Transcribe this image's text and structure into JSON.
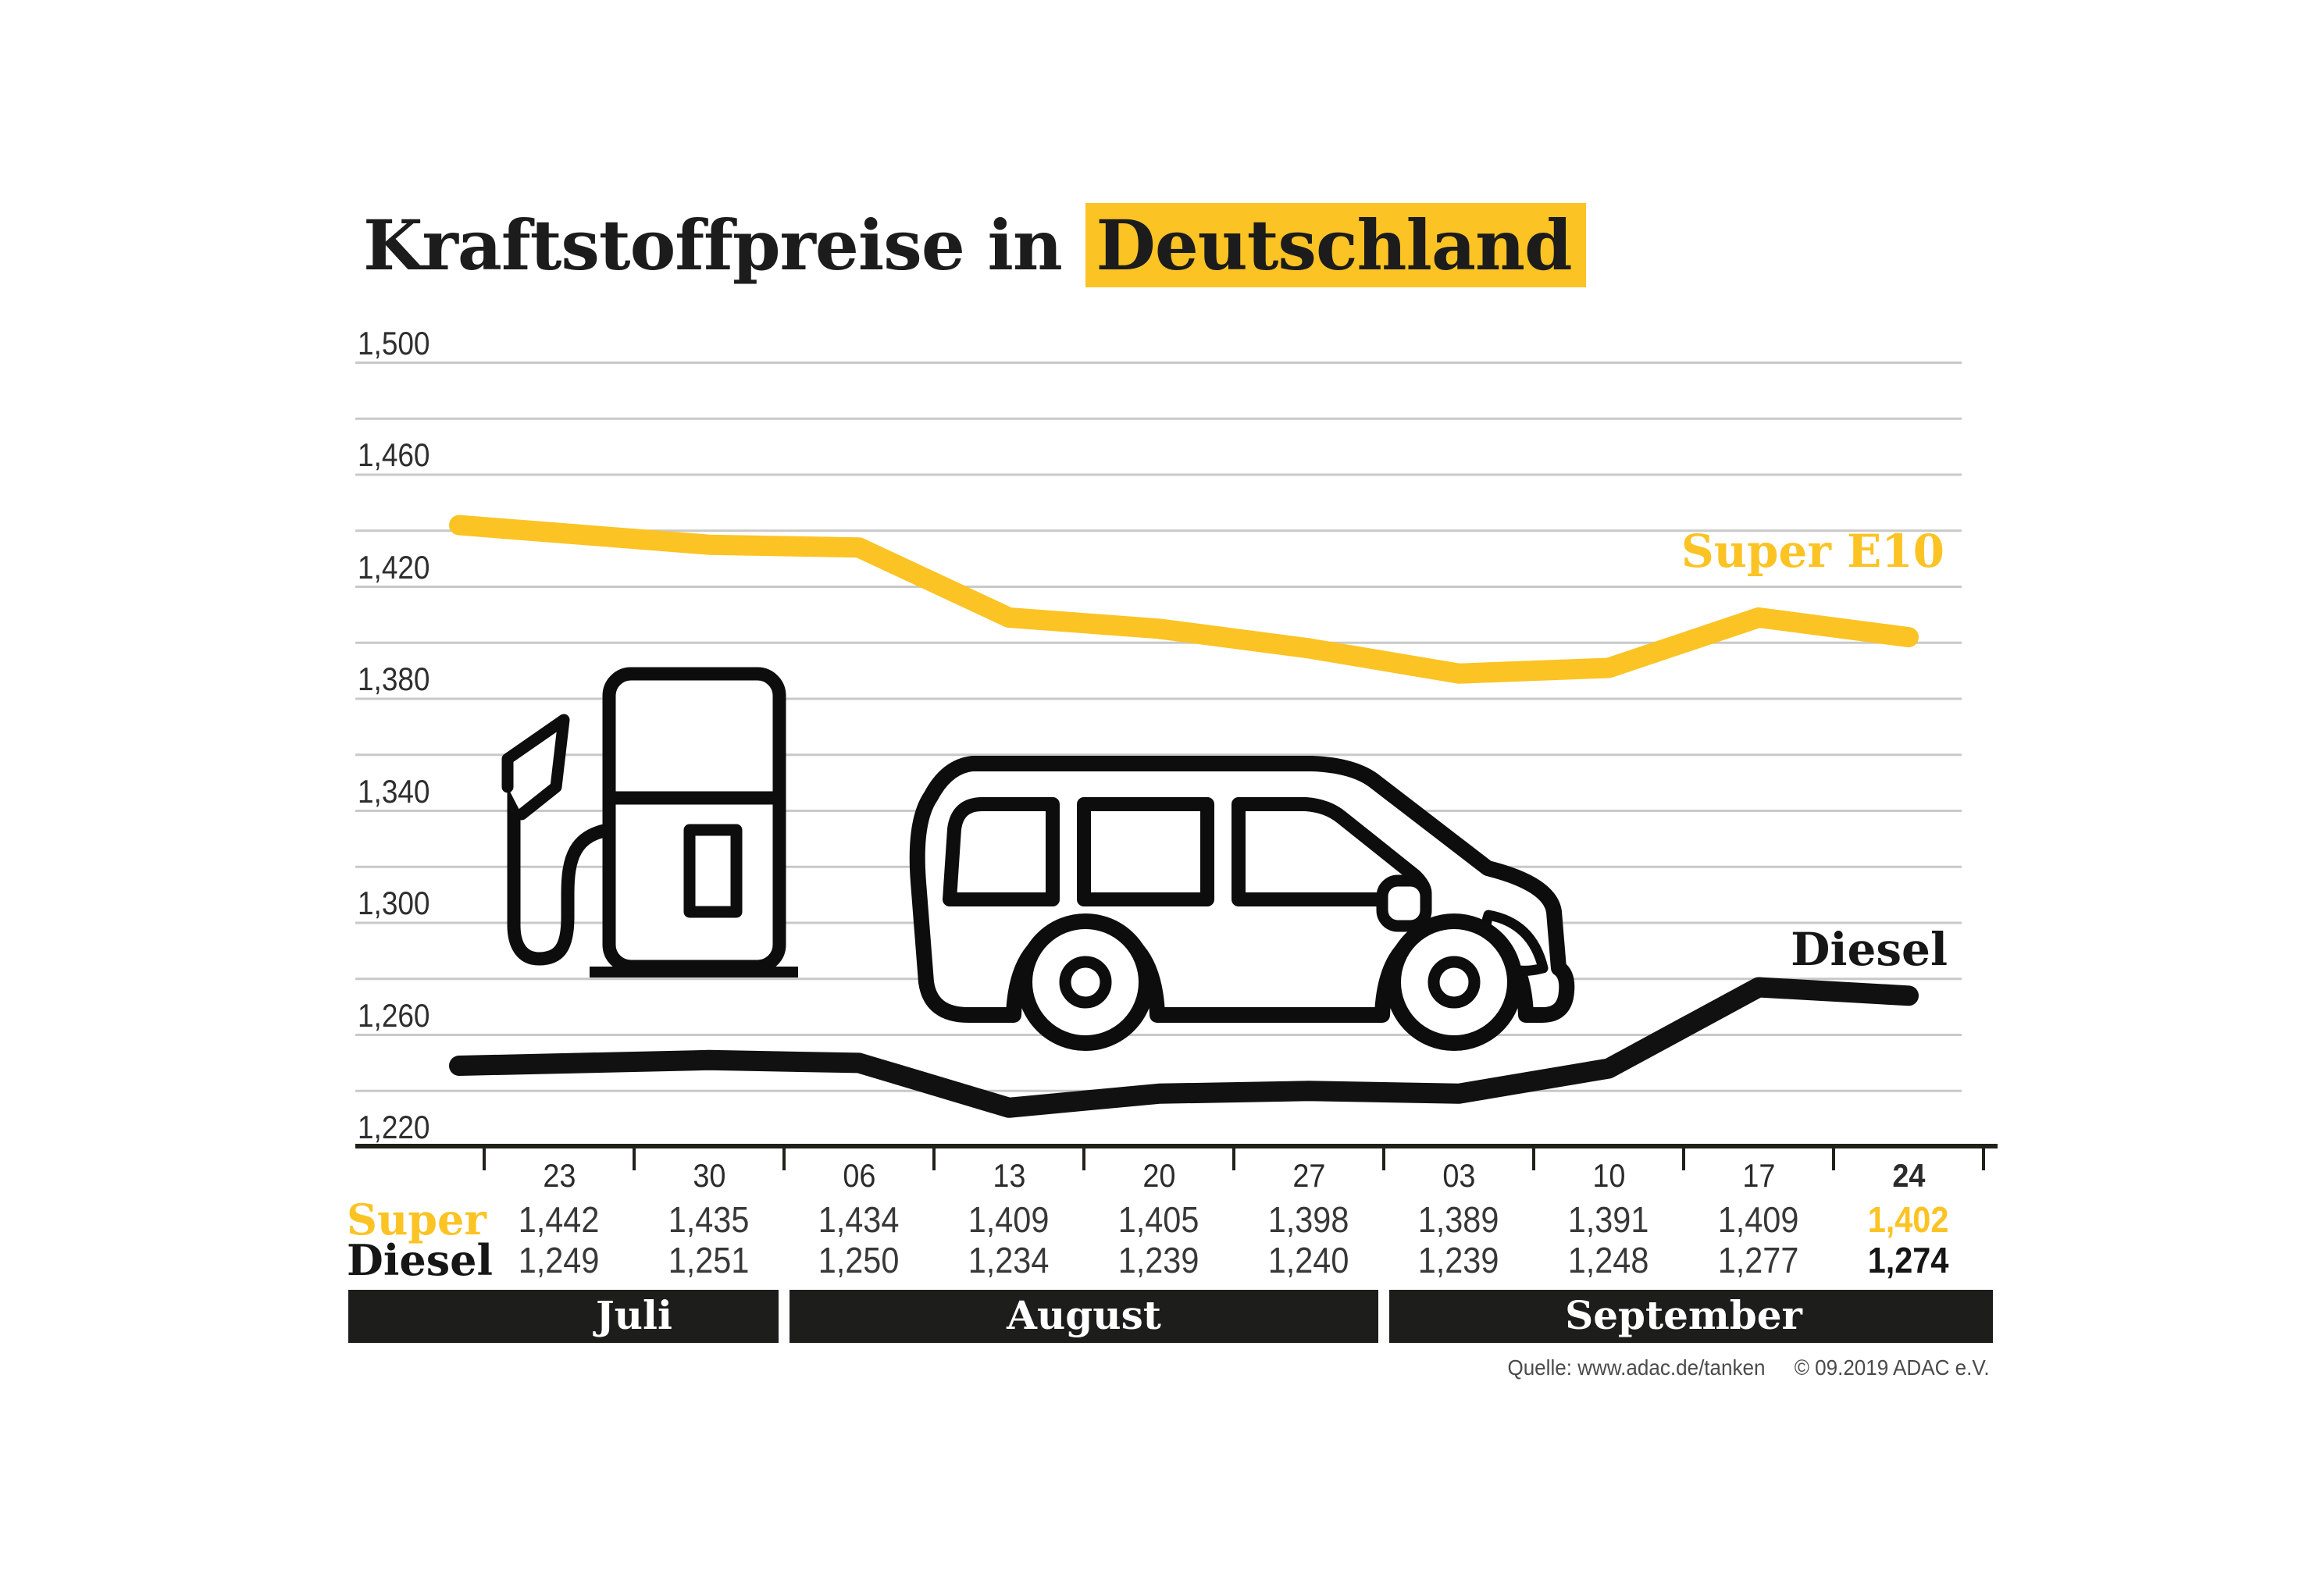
{
  "title": {
    "prefix": "Kraftstoffpreise in",
    "highlight": "Deutschland"
  },
  "colors": {
    "accent_yellow": "#FBC324",
    "diesel_black": "#111111",
    "grid": "#c9c9c9",
    "axis": "#21211a",
    "band_bg": "#1d1d1c",
    "band_text": "#ffffff",
    "text_dark": "#1c1c1c"
  },
  "chart_data": {
    "type": "line",
    "title": "Kraftstoffpreise in Deutschland",
    "ylim": [
      1220,
      1500
    ],
    "grid_step": 20,
    "ytick_labels": [
      "1,500",
      "1,460",
      "1,420",
      "1,380",
      "1,340",
      "1,300",
      "1,260",
      "1,220"
    ],
    "x_dates": [
      "23",
      "30",
      "06",
      "13",
      "20",
      "27",
      "03",
      "10",
      "17",
      "24"
    ],
    "months": [
      {
        "label": "Juli",
        "start_col": 0,
        "end_col": 2
      },
      {
        "label": "August",
        "start_col": 2,
        "end_col": 6
      },
      {
        "label": "September",
        "start_col": 6,
        "end_col": 10
      }
    ],
    "series": [
      {
        "name": "Super E10",
        "color": "#FBC324",
        "values": [
          1442,
          1435,
          1434,
          1409,
          1405,
          1398,
          1389,
          1391,
          1409,
          1402
        ]
      },
      {
        "name": "Diesel",
        "color": "#111111",
        "values": [
          1249,
          1251,
          1250,
          1234,
          1239,
          1240,
          1239,
          1248,
          1277,
          1274
        ]
      }
    ],
    "legend_position": "right-of-lines"
  },
  "table": {
    "date_row": [
      "23",
      "30",
      "06",
      "13",
      "20",
      "27",
      "03",
      "10",
      "17",
      "24"
    ],
    "rows": [
      {
        "label": "Super",
        "color": "#FBC324",
        "values": [
          "1,442",
          "1,435",
          "1,434",
          "1,409",
          "1,405",
          "1,398",
          "1,389",
          "1,391",
          "1,409",
          "1,402"
        ]
      },
      {
        "label": "Diesel",
        "color": "#161616",
        "values": [
          "1,249",
          "1,251",
          "1,250",
          "1,234",
          "1,239",
          "1,240",
          "1,239",
          "1,248",
          "1,277",
          "1,274"
        ]
      }
    ]
  },
  "source": {
    "quelle": "Quelle: www.adac.de/tanken",
    "copyright": "© 09.2019  ADAC e.V."
  }
}
